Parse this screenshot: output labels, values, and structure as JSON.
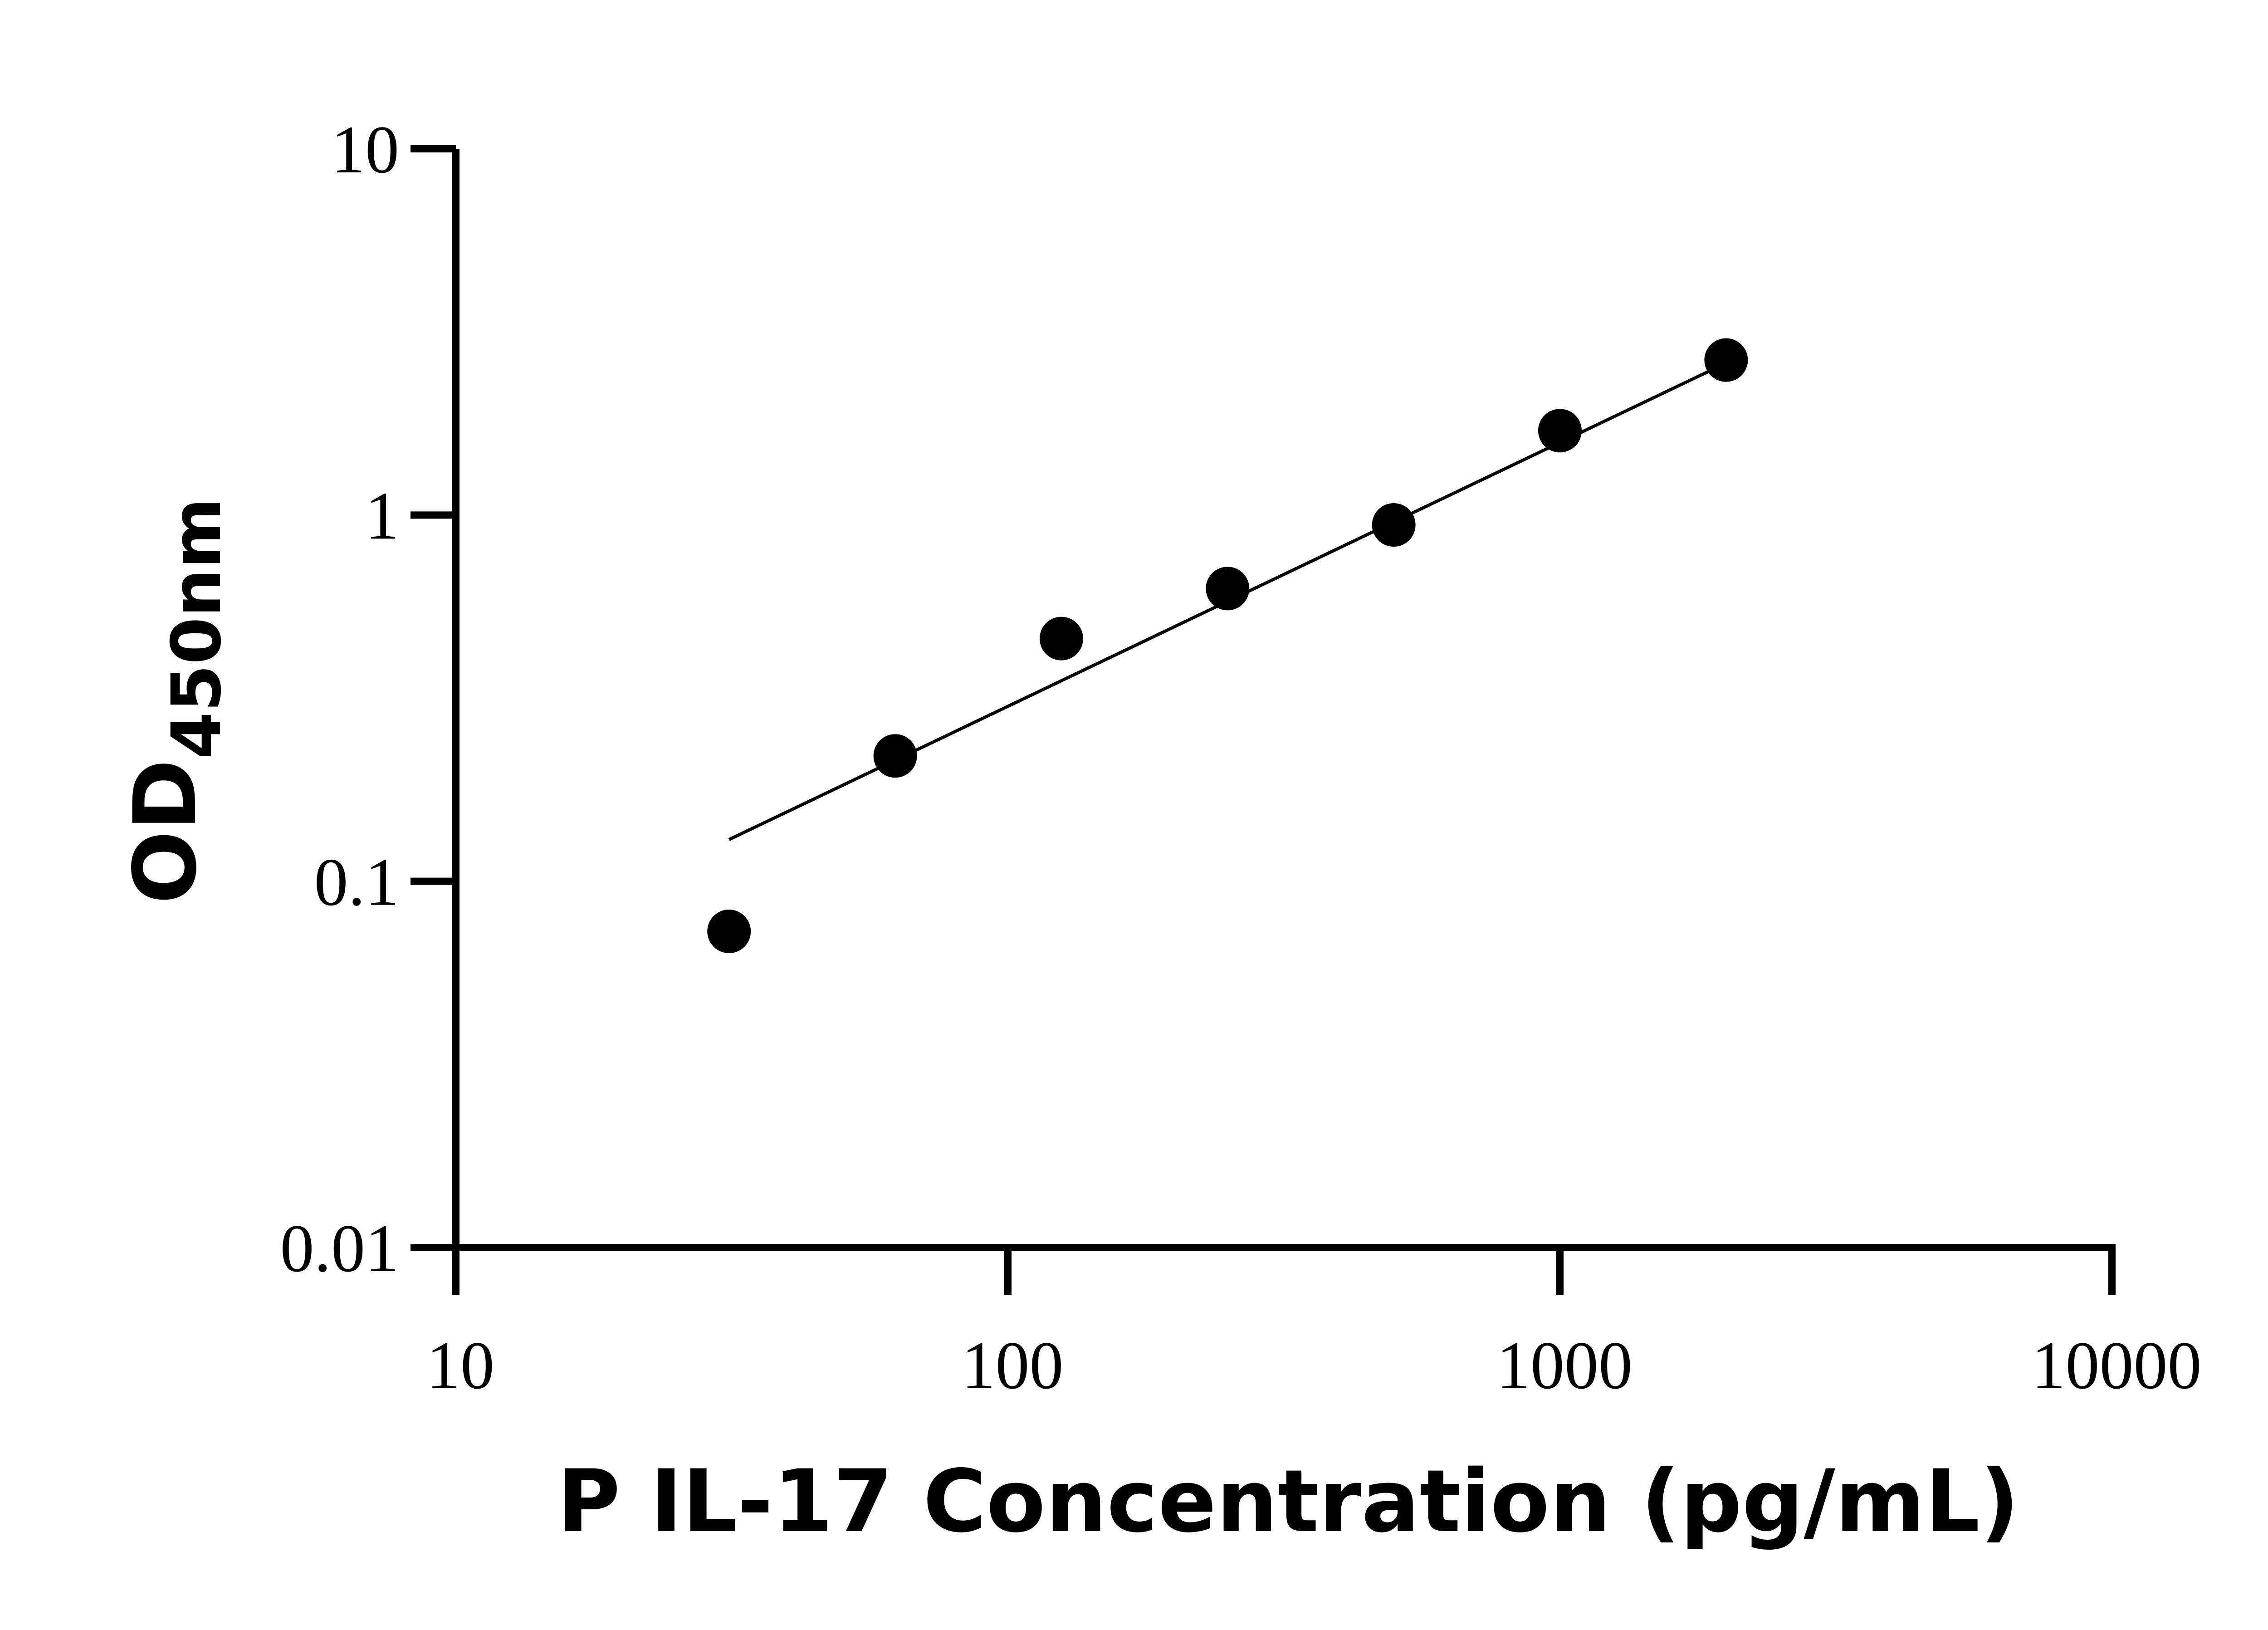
{
  "chart_data": {
    "type": "scatter",
    "title": "",
    "xlabel": "P IL-17 Concentration (pg/mL)",
    "ylabel": {
      "main": "OD",
      "subscript": "450nm"
    },
    "xscale": "log",
    "yscale": "log",
    "xlim": [
      10,
      10000
    ],
    "ylim": [
      0.01,
      10
    ],
    "x_ticks": [
      10,
      100,
      1000,
      10000
    ],
    "x_tick_labels": [
      "10",
      "100",
      "1000",
      "10000"
    ],
    "y_ticks": [
      0.01,
      0.1,
      1,
      10
    ],
    "y_tick_labels": [
      "0.01",
      "0.1",
      "1",
      "10"
    ],
    "grid": false,
    "legend": "none",
    "series": [
      {
        "x": [
          31.25,
          62.5,
          125,
          250,
          500,
          1000,
          2000
        ],
        "y": [
          0.073,
          0.22,
          0.46,
          0.63,
          0.94,
          1.7,
          2.65
        ]
      }
    ],
    "fit_line": {
      "x": [
        31.25,
        2000
      ],
      "y": [
        0.13,
        2.6
      ]
    },
    "colors": {
      "points": "#000000",
      "line": "#000000",
      "axes": "#000000"
    }
  }
}
